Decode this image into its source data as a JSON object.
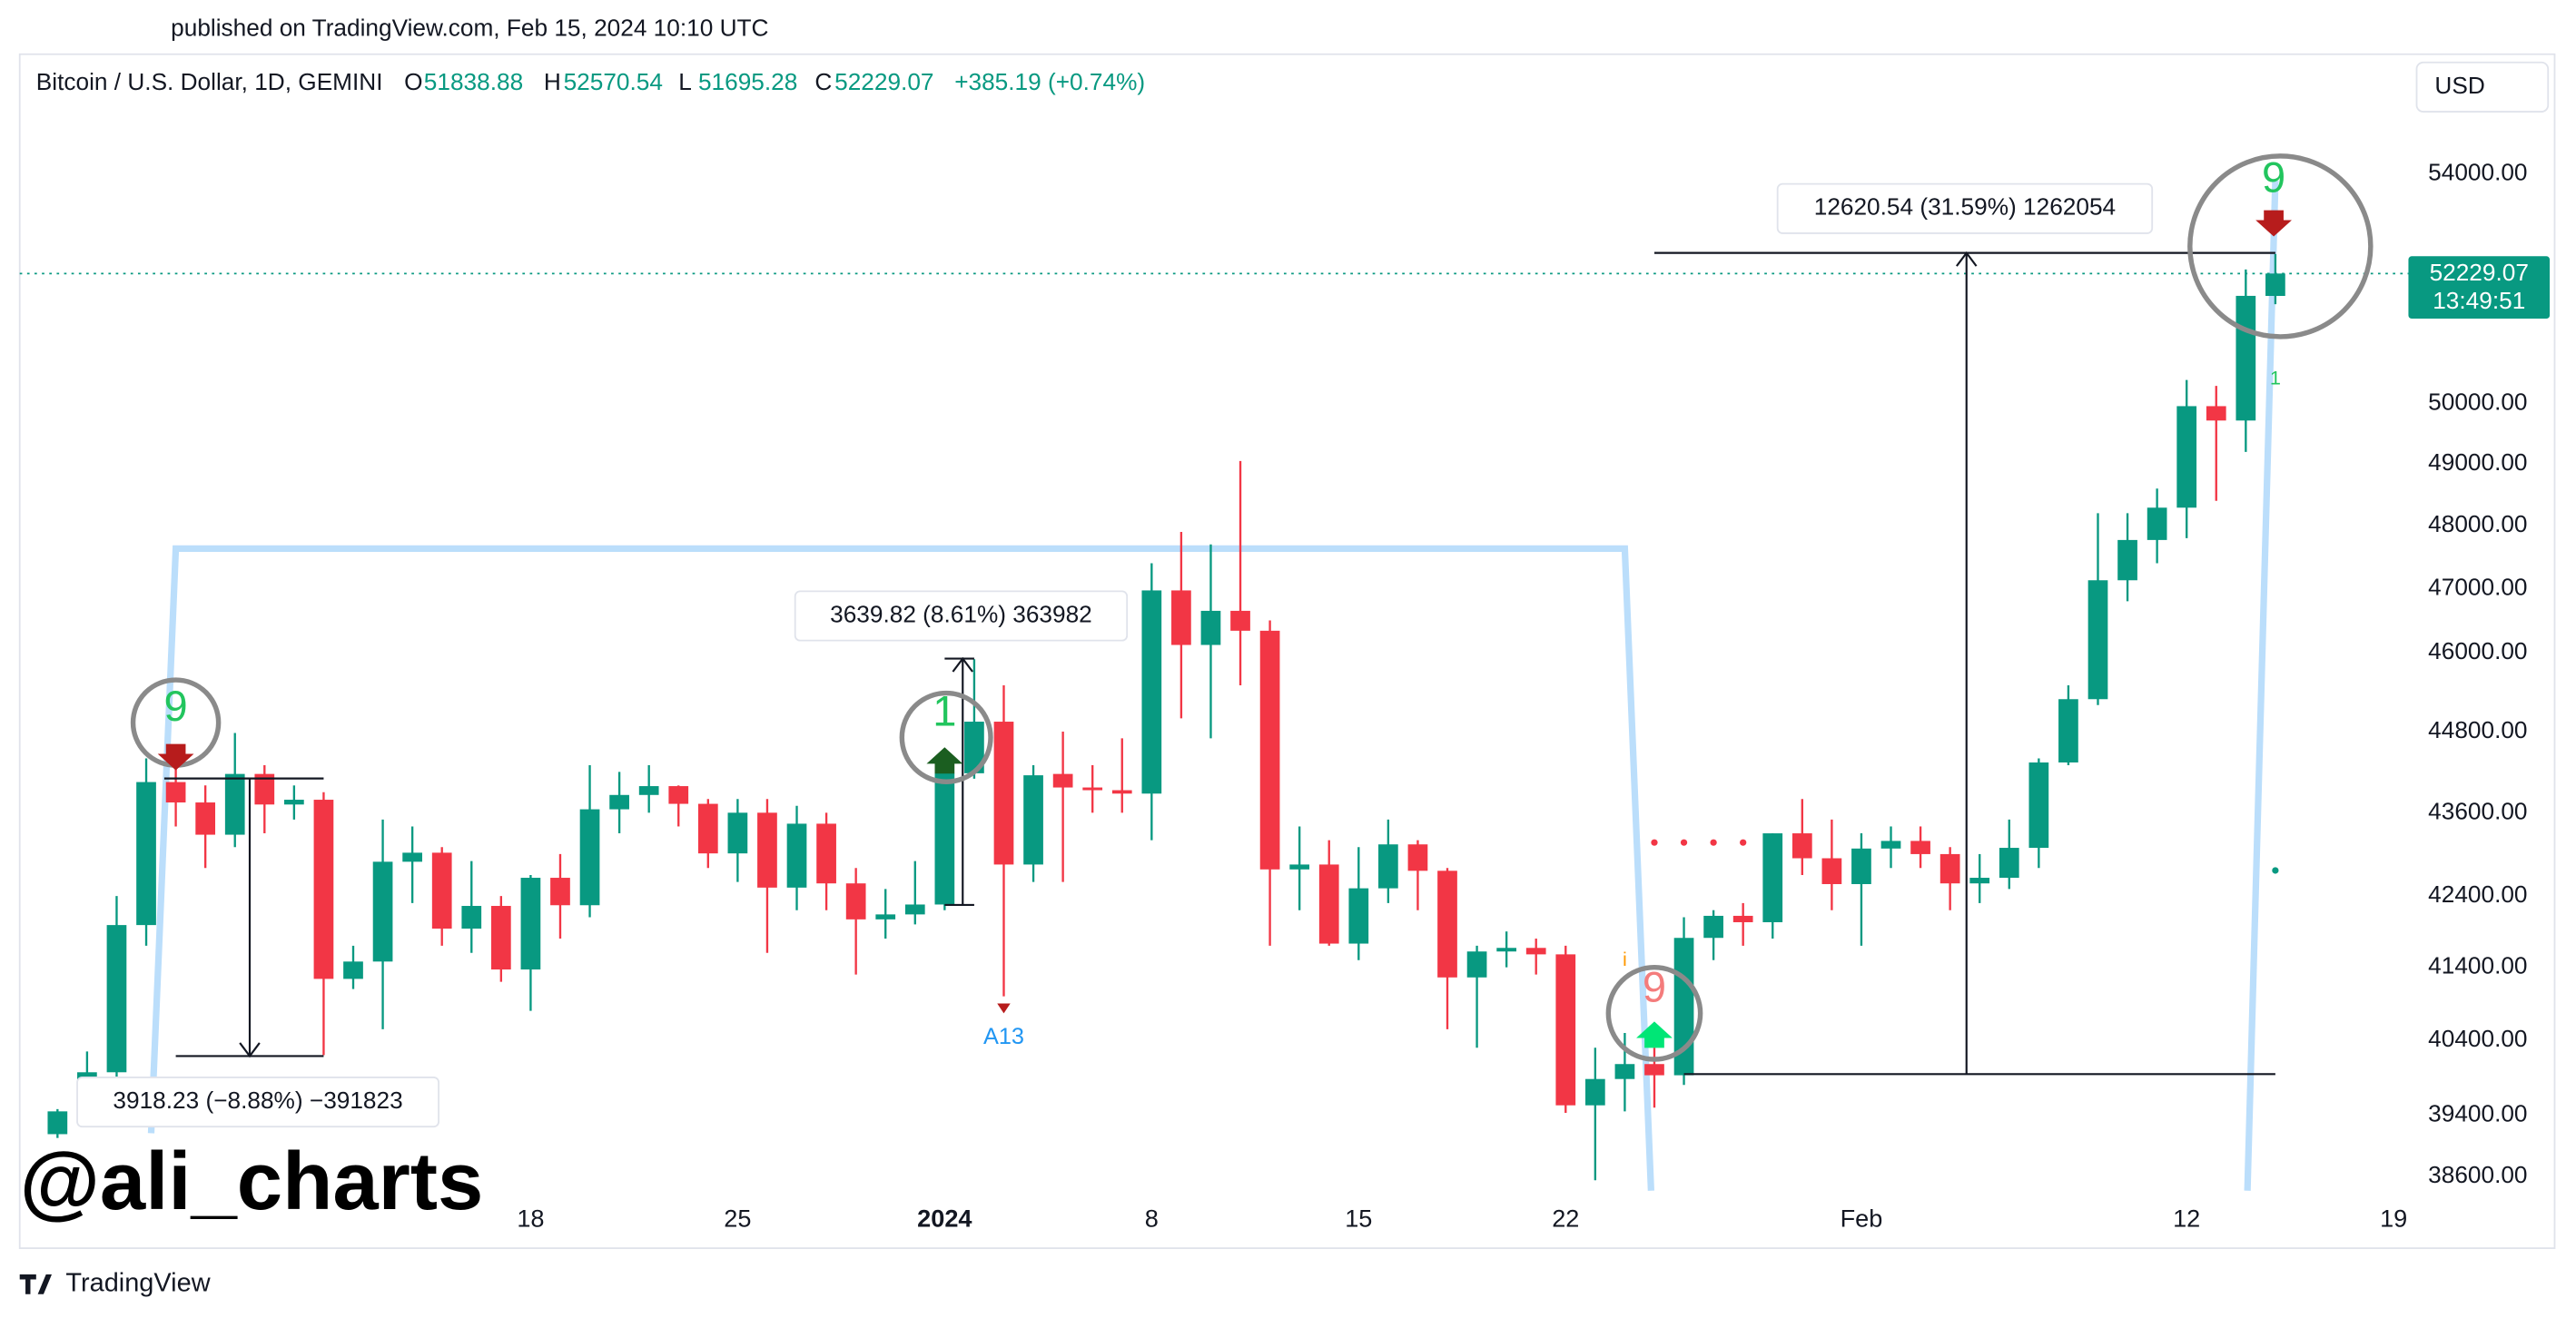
{
  "published": "published on TradingView.com, Feb 15, 2024 10:10 UTC",
  "watermark": "@ali_charts",
  "brand": "TradingView",
  "chart_data": {
    "type": "candlestick",
    "title": "Bitcoin / U.S. Dollar, 1D, GEMINI",
    "ohlc_labels": [
      "O",
      "H",
      "L",
      "C"
    ],
    "change": "+385.19 (+0.74%)",
    "currency": "USD",
    "countdown": "13:49:51",
    "up_color": "#089981",
    "down_color": "#f23645",
    "log_scale": true,
    "x": [
      "2023-12-02",
      "2023-12-03",
      "2023-12-04",
      "2023-12-05",
      "2023-12-06",
      "2023-12-07",
      "2023-12-08",
      "2023-12-09",
      "2023-12-10",
      "2023-12-11",
      "2023-12-12",
      "2023-12-13",
      "2023-12-14",
      "2023-12-15",
      "2023-12-16",
      "2023-12-17",
      "2023-12-18",
      "2023-12-19",
      "2023-12-20",
      "2023-12-21",
      "2023-12-22",
      "2023-12-23",
      "2023-12-24",
      "2023-12-25",
      "2023-12-26",
      "2023-12-27",
      "2023-12-28",
      "2023-12-29",
      "2023-12-30",
      "2023-12-31",
      "2024-01-01",
      "2024-01-02",
      "2024-01-03",
      "2024-01-04",
      "2024-01-05",
      "2024-01-06",
      "2024-01-07",
      "2024-01-08",
      "2024-01-09",
      "2024-01-10",
      "2024-01-11",
      "2024-01-12",
      "2024-01-13",
      "2024-01-14",
      "2024-01-15",
      "2024-01-16",
      "2024-01-17",
      "2024-01-18",
      "2024-01-19",
      "2024-01-20",
      "2024-01-21",
      "2024-01-22",
      "2024-01-23",
      "2024-01-24",
      "2024-01-25",
      "2024-01-26",
      "2024-01-27",
      "2024-01-28",
      "2024-01-29",
      "2024-01-30",
      "2024-01-31",
      "2024-02-01",
      "2024-02-02",
      "2024-02-03",
      "2024-02-04",
      "2024-02-05",
      "2024-02-06",
      "2024-02-07",
      "2024-02-08",
      "2024-02-09",
      "2024-02-10",
      "2024-02-11",
      "2024-02-12",
      "2024-02-13",
      "2024-02-14",
      "2024-02-15"
    ],
    "open": [
      39150,
      39450,
      39970,
      41990,
      44050,
      43750,
      43280,
      44170,
      43720,
      43790,
      41240,
      41480,
      42890,
      43020,
      41940,
      42260,
      41370,
      42660,
      42270,
      43650,
      43860,
      43990,
      43730,
      43010,
      43600,
      42520,
      43440,
      42580,
      42070,
      42140,
      42280,
      44180,
      44950,
      42850,
      44170,
      43970,
      43930,
      43880,
      46970,
      46120,
      46650,
      46340,
      42780,
      42850,
      41730,
      42510,
      43140,
      42760,
      41260,
      41620,
      41670,
      41580,
      39530,
      39880,
      40080,
      39930,
      41810,
      42120,
      42030,
      43300,
      42940,
      42570,
      43080,
      43190,
      43000,
      42580,
      42660,
      43090,
      44340,
      45290,
      47130,
      47770,
      48290,
      49960,
      49720,
      51838.88
    ],
    "high": [
      39480,
      40250,
      42400,
      44400,
      44300,
      44000,
      44780,
      44300,
      44000,
      43900,
      41700,
      43500,
      43400,
      43100,
      42900,
      42400,
      42700,
      43000,
      44300,
      44200,
      44300,
      44000,
      43800,
      43800,
      43800,
      43700,
      43600,
      42800,
      42500,
      42900,
      44300,
      45900,
      45500,
      44300,
      44800,
      44300,
      44700,
      47400,
      47900,
      47700,
      49050,
      46500,
      43400,
      43200,
      43100,
      43500,
      43200,
      42800,
      41700,
      41900,
      41800,
      41700,
      40300,
      40500,
      40300,
      42100,
      42200,
      42300,
      43300,
      43800,
      43500,
      43300,
      43400,
      43400,
      43100,
      43000,
      43500,
      44400,
      45500,
      48200,
      48200,
      48600,
      50400,
      50300,
      52300,
      52570.54
    ],
    "low": [
      39100,
      39400,
      39800,
      41700,
      43400,
      42800,
      43100,
      43300,
      43500,
      40200,
      41100,
      40550,
      42300,
      41700,
      41600,
      41200,
      40800,
      41800,
      42100,
      43300,
      43600,
      43400,
      42800,
      42600,
      41600,
      42200,
      42200,
      41300,
      41800,
      42000,
      42200,
      44100,
      41000,
      42600,
      42600,
      43600,
      43600,
      43200,
      45000,
      44700,
      45500,
      41700,
      42200,
      41700,
      41500,
      42300,
      42200,
      40550,
      40300,
      41400,
      41300,
      39430,
      38550,
      39450,
      39500,
      39800,
      41500,
      41700,
      41800,
      42700,
      42200,
      41700,
      42800,
      42800,
      42200,
      42300,
      42500,
      42800,
      44300,
      45200,
      46800,
      47400,
      47800,
      48400,
      49200,
      51695.28
    ],
    "close": [
      39450,
      39970,
      41990,
      44050,
      43750,
      43280,
      44170,
      43720,
      43790,
      41240,
      41480,
      42890,
      43020,
      41940,
      42260,
      41370,
      42660,
      42270,
      43650,
      43860,
      43990,
      43730,
      43010,
      43600,
      42520,
      43440,
      42580,
      42070,
      42140,
      42280,
      44180,
      44950,
      42850,
      44150,
      43970,
      43930,
      43880,
      46970,
      46120,
      46650,
      46340,
      42780,
      42850,
      41730,
      42510,
      43140,
      42760,
      41260,
      41620,
      41670,
      41580,
      39530,
      39880,
      40080,
      39930,
      41810,
      42120,
      42030,
      43300,
      42940,
      42570,
      43080,
      43190,
      43000,
      42580,
      42660,
      43090,
      44340,
      45290,
      47130,
      47770,
      48290,
      49960,
      49720,
      51840,
      52229.07
    ],
    "xlim": [
      "2023-12-01",
      "2024-02-18"
    ],
    "xticks": [
      {
        "value": "2023-12-18",
        "label": "18"
      },
      {
        "value": "2023-12-25",
        "label": "25"
      },
      {
        "value": "2024-01-01",
        "label": "2024"
      },
      {
        "value": "2024-01-08",
        "label": "8"
      },
      {
        "value": "2024-01-15",
        "label": "15"
      },
      {
        "value": "2024-01-22",
        "label": "22"
      },
      {
        "value": "2024-02-01",
        "label": "Feb"
      },
      {
        "value": "2024-02-12",
        "label": "12"
      },
      {
        "value": "2024-02-19",
        "label": "19"
      }
    ],
    "ylim": [
      38310,
      56210
    ],
    "yticks": [
      {
        "value": 38600,
        "label": "38600.00"
      },
      {
        "value": 39400,
        "label": "39400.00"
      },
      {
        "value": 40400,
        "label": "40400.00"
      },
      {
        "value": 41400,
        "label": "41400.00"
      },
      {
        "value": 42400,
        "label": "42400.00"
      },
      {
        "value": 43600,
        "label": "43600.00"
      },
      {
        "value": 44800,
        "label": "44800.00"
      },
      {
        "value": 46000,
        "label": "46000.00"
      },
      {
        "value": 47000,
        "label": "47000.00"
      },
      {
        "value": 48000,
        "label": "48000.00"
      },
      {
        "value": 49000,
        "label": "49000.00"
      },
      {
        "value": 50000,
        "label": "50000.00"
      },
      {
        "value": 54000,
        "label": "54000.00"
      }
    ],
    "measures": [
      "3918.23 (−8.88%) −391823",
      "3639.82 (8.61%) 363982",
      "12620.54 (31.59%) 1262054"
    ],
    "td_labels": [
      "9",
      "1",
      "9",
      "9",
      "1"
    ],
    "signal_label": "A13",
    "info_label": "i"
  }
}
